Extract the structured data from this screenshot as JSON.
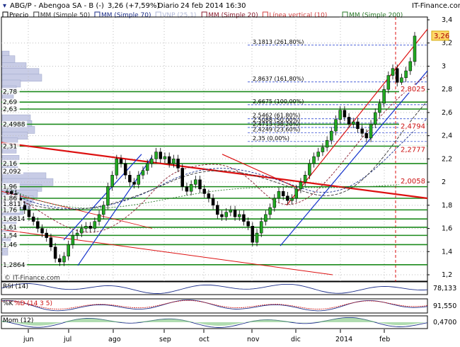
{
  "header": {
    "title": "ABG/P - Abengoa SA - B (-)",
    "quote": "3,26 (+7,59%)",
    "period": "Diario",
    "datetime": "24 feb 2014 16:30",
    "brand": "IT-Finance.com"
  },
  "legend": [
    {
      "label": "Precio",
      "color": "#000000"
    },
    {
      "label": "MM (Simple 50)",
      "color": "#333333"
    },
    {
      "label": "MM (Simple 70)",
      "color": "#1d2f8a"
    },
    {
      "label": "VNP (25,1)",
      "color": "#b0b8d8"
    },
    {
      "label": "MM (Simple 20)",
      "color": "#8a1d2f"
    },
    {
      "label": "Línea vertical (10)",
      "color": "#d24040"
    },
    {
      "label": "MM (Simple 200)",
      "color": "#2a7a2a"
    }
  ],
  "watermark": "© IT-Finance.com",
  "colors": {
    "up": "#22aa22",
    "down": "#000000",
    "hline": "#1b8a1b",
    "trend": "#dd1111",
    "channel": "#1533cc",
    "profile": "#c8cce6",
    "grid": "#bdbdbd"
  },
  "chart_data": {
    "type": "candlestick",
    "ylim": [
      1.2,
      3.4
    ],
    "ticks_y": [
      "3,4",
      "3,2",
      "3",
      "2,8",
      "2,6",
      "2,4",
      "2,2",
      "2",
      "1,8",
      "1,6",
      "1,4",
      "1,2"
    ],
    "months": [
      "jun",
      "jul",
      "ago",
      "sep",
      "oct",
      "nov",
      "dic",
      "2014",
      "feb"
    ],
    "last_price": "3,26",
    "fib_levels": [
      {
        "label": "3,1813 (261,80%)",
        "value": 3.1813
      },
      {
        "label": "2,8637 (161,80%)",
        "value": 2.8637
      },
      {
        "label": "2,6675 (100,00%)",
        "value": 2.6675
      },
      {
        "label": "2,5462 (61,80%)",
        "value": 2.5462
      },
      {
        "label": "2,5088 (50,00%)",
        "value": 2.5088
      },
      {
        "label": "2,4713 (38,20%)",
        "value": 2.4713
      },
      {
        "label": "2,4249 (23,60%)",
        "value": 2.4249
      },
      {
        "label": "2,35 (0,00%)",
        "value": 2.35
      }
    ],
    "left_levels": [
      {
        "label": "2,78",
        "value": 2.78
      },
      {
        "label": "2,69",
        "value": 2.69
      },
      {
        "label": "2,63",
        "value": 2.63
      },
      {
        "label": "2,4988",
        "value": 2.4988
      },
      {
        "label": "2,31",
        "value": 2.31
      },
      {
        "label": "2,16",
        "value": 2.16
      },
      {
        "label": "2,092",
        "value": 2.092
      },
      {
        "label": "1,96",
        "value": 1.96
      },
      {
        "label": "1,86",
        "value": 1.86
      },
      {
        "label": "1,811",
        "value": 1.811
      },
      {
        "label": "1,76",
        "value": 1.76
      },
      {
        "label": "1,6814",
        "value": 1.6814
      },
      {
        "label": "1,61",
        "value": 1.61
      },
      {
        "label": "1,54",
        "value": 1.54
      },
      {
        "label": "1,46",
        "value": 1.46
      },
      {
        "label": "1,2864",
        "value": 1.2864
      }
    ],
    "right_levels": [
      {
        "label": "2,8025",
        "value": 2.8025
      },
      {
        "label": "2,4794",
        "value": 2.4794
      },
      {
        "label": "2,2777",
        "value": 2.2777
      },
      {
        "label": "2,0058",
        "value": 2.0058
      }
    ],
    "close_path": [
      1.92,
      1.9,
      1.86,
      1.8,
      1.76,
      1.7,
      1.66,
      1.6,
      1.56,
      1.52,
      1.44,
      1.34,
      1.31,
      1.36,
      1.46,
      1.54,
      1.56,
      1.6,
      1.62,
      1.6,
      1.66,
      1.72,
      1.8,
      1.96,
      2.06,
      2.2,
      2.16,
      2.06,
      2.0,
      1.98,
      2.06,
      2.1,
      2.16,
      2.2,
      2.26,
      2.2,
      2.22,
      2.16,
      2.2,
      2.12,
      1.96,
      1.92,
      1.98,
      2.02,
      1.94,
      1.9,
      1.86,
      1.8,
      1.72,
      1.7,
      1.74,
      1.76,
      1.7,
      1.72,
      1.66,
      1.62,
      1.48,
      1.56,
      1.66,
      1.72,
      1.78,
      1.86,
      1.92,
      1.88,
      1.84,
      1.86,
      1.94,
      2.0,
      2.06,
      2.16,
      2.22,
      2.26,
      2.3,
      2.36,
      2.44,
      2.54,
      2.62,
      2.56,
      2.5,
      2.52,
      2.46,
      2.42,
      2.38,
      2.5,
      2.6,
      2.68,
      2.8,
      2.92,
      2.98,
      2.86,
      2.9,
      2.96,
      3.04,
      3.26
    ],
    "indicators": [
      {
        "name": "RSI (14)",
        "value": "78,133"
      },
      {
        "name": "%K",
        "name2": "%D (14 3 5)",
        "value": "91,550"
      },
      {
        "name": "Mom (12)",
        "value": "0,4700"
      }
    ]
  }
}
